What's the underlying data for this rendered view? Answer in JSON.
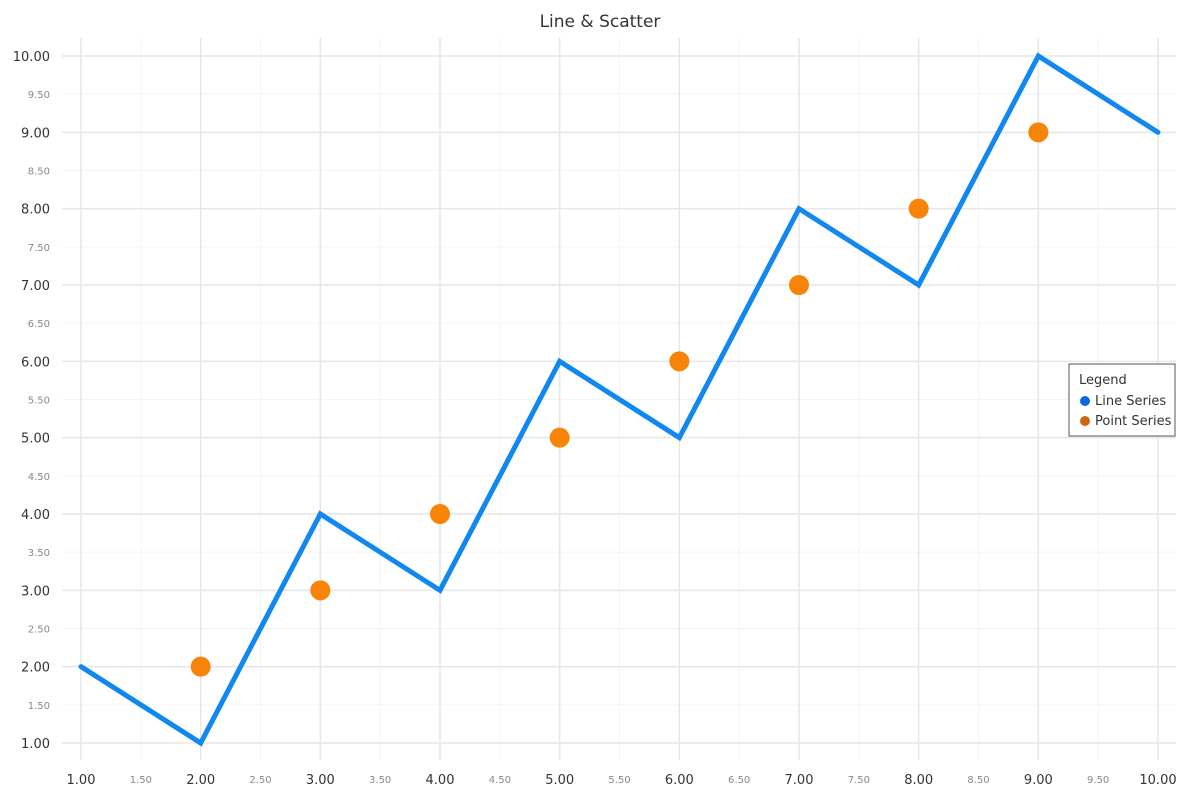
{
  "chart_data": {
    "type": "line",
    "title": "Line & Scatter",
    "xlabel": "",
    "ylabel": "",
    "xlim": [
      1,
      10
    ],
    "ylim": [
      1,
      10
    ],
    "grid": true,
    "x_major_ticks": [
      "1.00",
      "2.00",
      "3.00",
      "4.00",
      "5.00",
      "6.00",
      "7.00",
      "8.00",
      "9.00",
      "10.00"
    ],
    "x_minor_ticks": [
      "1.50",
      "2.50",
      "3.50",
      "4.50",
      "5.50",
      "6.50",
      "7.50",
      "8.50",
      "9.50"
    ],
    "y_major_ticks": [
      "1.00",
      "2.00",
      "3.00",
      "4.00",
      "5.00",
      "6.00",
      "7.00",
      "8.00",
      "9.00",
      "10.00"
    ],
    "y_minor_ticks": [
      "1.50",
      "2.50",
      "3.50",
      "4.50",
      "5.50",
      "6.50",
      "7.50",
      "8.50",
      "9.50"
    ],
    "legend": {
      "title": "Legend",
      "position": "right"
    },
    "series": [
      {
        "name": "Line Series",
        "type": "line",
        "color": "#1187f0",
        "legend_color": "#0a6ad6",
        "x": [
          1,
          2,
          3,
          4,
          5,
          6,
          7,
          8,
          9,
          10
        ],
        "y": [
          2,
          1,
          4,
          3,
          6,
          5,
          8,
          7,
          10,
          9
        ]
      },
      {
        "name": "Point Series",
        "type": "scatter",
        "color": "#f78307",
        "legend_color": "#cc6612",
        "x": [
          2,
          3,
          4,
          5,
          6,
          7,
          8,
          9
        ],
        "y": [
          2,
          3,
          4,
          5,
          6,
          7,
          8,
          9
        ]
      }
    ]
  }
}
